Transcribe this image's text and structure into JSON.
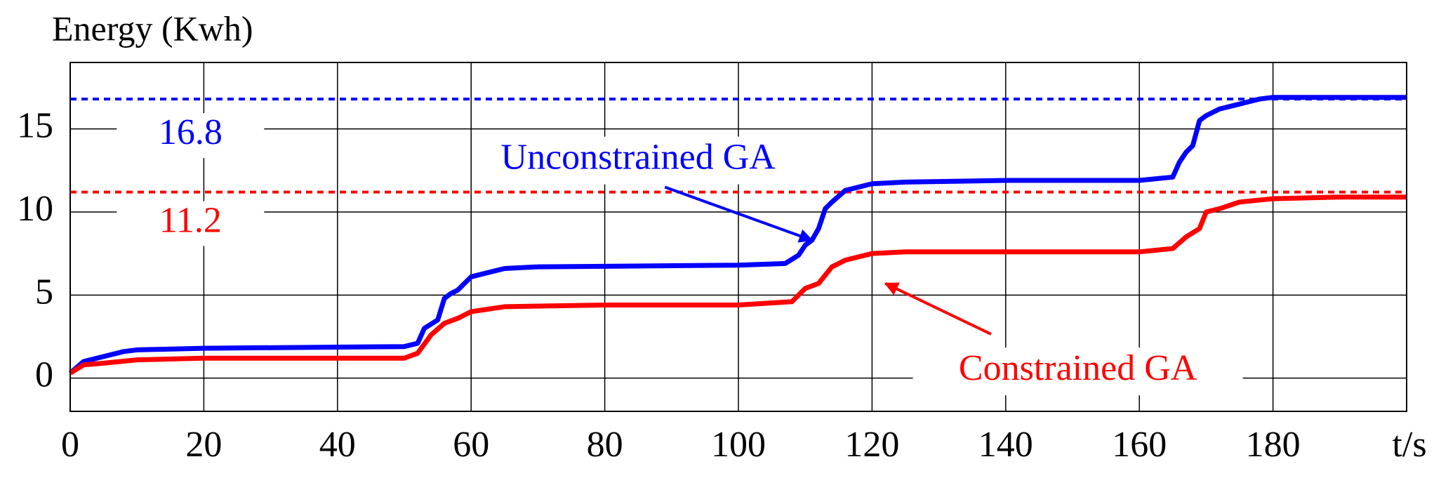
{
  "chart_data": {
    "type": "line",
    "title": "Energy (Kwh)",
    "x_label": "t/s",
    "xlim": [
      0,
      200
    ],
    "xticks": [
      0,
      20,
      40,
      60,
      80,
      100,
      120,
      140,
      160,
      180
    ],
    "ylim": [
      -2,
      19
    ],
    "yticks": [
      0,
      5,
      10,
      15
    ],
    "grid": true,
    "reference_lines": [
      {
        "value": 16.8,
        "color": "#0000ff"
      },
      {
        "value": 11.2,
        "color": "#ff0000"
      }
    ],
    "series": [
      {
        "name": "Unconstrained GA",
        "color": "#0000ff",
        "x": [
          0,
          2,
          5,
          8,
          10,
          20,
          50,
          52,
          53,
          55,
          56,
          57,
          58,
          60,
          62,
          65,
          70,
          100,
          107,
          109,
          110,
          111,
          112,
          113,
          114,
          116,
          118,
          120,
          125,
          140,
          160,
          165,
          166,
          167,
          168,
          169,
          170,
          172,
          175,
          178,
          180,
          190,
          200
        ],
        "values": [
          0.3,
          1.0,
          1.3,
          1.6,
          1.7,
          1.8,
          1.9,
          2.1,
          3.0,
          3.5,
          4.8,
          5.1,
          5.3,
          6.1,
          6.3,
          6.6,
          6.7,
          6.8,
          6.9,
          7.4,
          8.0,
          8.3,
          9.0,
          10.2,
          10.6,
          11.3,
          11.5,
          11.7,
          11.8,
          11.9,
          11.9,
          12.1,
          13.0,
          13.6,
          14.0,
          15.5,
          15.8,
          16.2,
          16.5,
          16.8,
          16.9,
          16.9,
          16.9
        ]
      },
      {
        "name": "Constrained GA",
        "color": "#ff0000",
        "x": [
          0,
          2,
          5,
          10,
          20,
          50,
          52,
          54,
          56,
          58,
          60,
          65,
          80,
          100,
          108,
          110,
          112,
          114,
          116,
          118,
          120,
          125,
          140,
          160,
          165,
          167,
          169,
          170,
          172,
          175,
          180,
          190,
          200
        ],
        "values": [
          0.3,
          0.8,
          0.9,
          1.1,
          1.2,
          1.2,
          1.5,
          2.6,
          3.3,
          3.6,
          4.0,
          4.3,
          4.4,
          4.4,
          4.6,
          5.4,
          5.7,
          6.7,
          7.1,
          7.3,
          7.5,
          7.6,
          7.6,
          7.6,
          7.8,
          8.5,
          9.0,
          10.0,
          10.2,
          10.6,
          10.8,
          10.9,
          10.9
        ]
      }
    ]
  }
}
